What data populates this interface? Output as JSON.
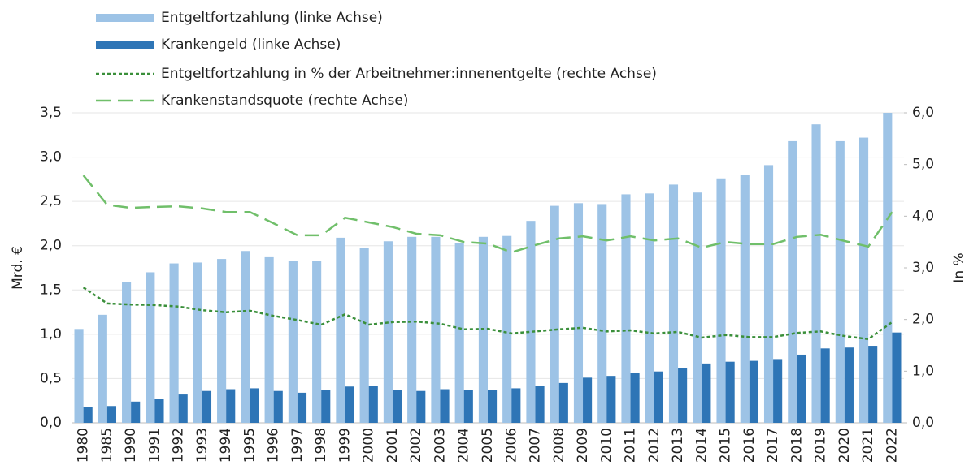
{
  "chart_data": {
    "type": "bar",
    "y_label": "Mrd. €",
    "y2_label": "In %",
    "grid": true,
    "legend": "top-left",
    "categories": [
      "1980",
      "1985",
      "1990",
      "1991",
      "1992",
      "1993",
      "1994",
      "1995",
      "1996",
      "1997",
      "1998",
      "1999",
      "2000",
      "2001",
      "2002",
      "2003",
      "2004",
      "2005",
      "2006",
      "2007",
      "2008",
      "2009",
      "2010",
      "2011",
      "2012",
      "2013",
      "2014",
      "2015",
      "2016",
      "2017",
      "2018",
      "2019",
      "2020",
      "2021",
      "2022"
    ],
    "ylim": [
      0,
      3.5
    ],
    "yticks": [
      {
        "value": 0,
        "label": "0,0"
      },
      {
        "value": 0.5,
        "label": "0,5"
      },
      {
        "value": 1,
        "label": "1,0"
      },
      {
        "value": 1.5,
        "label": "1,5"
      },
      {
        "value": 2,
        "label": "2,0"
      },
      {
        "value": 2.5,
        "label": "2,5"
      },
      {
        "value": 3,
        "label": "3,0"
      },
      {
        "value": 3.5,
        "label": "3,5"
      }
    ],
    "y2lim": [
      0,
      6
    ],
    "y2ticks": [
      {
        "value": 0,
        "label": "0,0"
      },
      {
        "value": 1,
        "label": "1,0"
      },
      {
        "value": 2,
        "label": "2,0"
      },
      {
        "value": 3,
        "label": "3,0"
      },
      {
        "value": 4,
        "label": "4,0"
      },
      {
        "value": 5,
        "label": "5,0"
      },
      {
        "value": 6,
        "label": "6,0"
      }
    ],
    "series": [
      {
        "name": "Entgeltfortzahlung (linke Achse)",
        "type": "bar",
        "color": "#9dc3e6",
        "values": [
          1.06,
          1.22,
          1.59,
          1.7,
          1.8,
          1.81,
          1.85,
          1.94,
          1.87,
          1.83,
          1.83,
          2.09,
          1.97,
          2.05,
          2.1,
          2.1,
          2.03,
          2.1,
          2.11,
          2.28,
          2.45,
          2.48,
          2.47,
          2.58,
          2.59,
          2.69,
          2.6,
          2.76,
          2.8,
          2.91,
          3.18,
          3.37,
          3.18,
          3.22,
          3.5
        ]
      },
      {
        "name": "Krankengeld (linke Achse)",
        "type": "bar",
        "color": "#2e75b6",
        "values": [
          0.18,
          0.19,
          0.24,
          0.27,
          0.32,
          0.36,
          0.38,
          0.39,
          0.36,
          0.34,
          0.37,
          0.41,
          0.42,
          0.37,
          0.36,
          0.38,
          0.37,
          0.37,
          0.39,
          0.42,
          0.45,
          0.51,
          0.53,
          0.56,
          0.58,
          0.62,
          0.67,
          0.69,
          0.7,
          0.72,
          0.77,
          0.84,
          0.85,
          0.87,
          1.02
        ]
      },
      {
        "name": "Entgeltfortzahlung in % der Arbeitnehmer:innenentgelte (rechte Achse)",
        "type": "line",
        "axis": "y2",
        "color": "#3a8f3a",
        "linestyle": "dotted",
        "values": [
          2.62,
          2.31,
          2.29,
          2.28,
          2.25,
          2.18,
          2.14,
          2.17,
          2.07,
          1.99,
          1.9,
          2.1,
          1.9,
          1.95,
          1.96,
          1.92,
          1.81,
          1.82,
          1.73,
          1.77,
          1.81,
          1.84,
          1.77,
          1.79,
          1.73,
          1.76,
          1.65,
          1.7,
          1.66,
          1.66,
          1.74,
          1.77,
          1.68,
          1.62,
          1.95
        ]
      },
      {
        "name": "Krankenstandsquote (rechte Achse)",
        "type": "line",
        "axis": "y2",
        "color": "#70bf6a",
        "linestyle": "dashed",
        "values": [
          4.79,
          4.22,
          4.16,
          4.18,
          4.19,
          4.15,
          4.08,
          4.08,
          3.86,
          3.63,
          3.63,
          3.97,
          3.88,
          3.79,
          3.66,
          3.63,
          3.5,
          3.47,
          3.3,
          3.44,
          3.57,
          3.61,
          3.53,
          3.61,
          3.53,
          3.57,
          3.39,
          3.5,
          3.46,
          3.46,
          3.6,
          3.64,
          3.52,
          3.41,
          4.08
        ]
      }
    ]
  }
}
